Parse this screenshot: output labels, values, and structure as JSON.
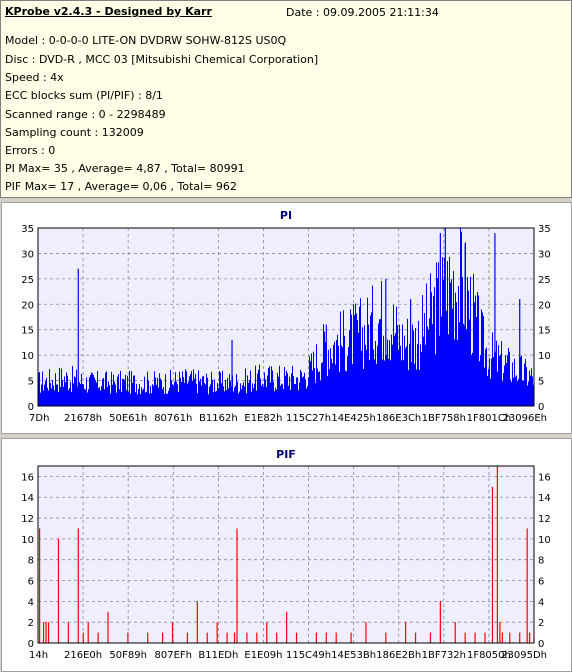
{
  "header": {
    "title": "KProbe v2.4.3 - Designed by Karr",
    "date": "Date : 09.09.2005 21:11:34",
    "lines": [
      "Model : 0-0-0-0 LITE-ON DVDRW SOHW-812S  US0Q",
      "Disc : DVD-R , MCC 03 [Mitsubishi Chemical Corporation]",
      "Speed : 4x",
      "ECC blocks sum (PI/PIF) : 8/1",
      "Scanned range : 0 - 2298489",
      "Sampling count : 132009",
      "Errors : 0",
      "PI Max= 35 , Average= 4,87 , Total= 80991",
      "PIF Max= 17 , Average= 0,06 , Total= 962"
    ]
  },
  "chart_data": [
    {
      "type": "bar",
      "title": "PI",
      "color": "#0000ff",
      "ylim": [
        0,
        35
      ],
      "yticks": [
        0,
        5,
        10,
        15,
        20,
        25,
        30,
        35
      ],
      "xticks": [
        "7Dh",
        "21678h",
        "50E61h",
        "80761h",
        "B1162h",
        "E1E82h",
        "115C27h",
        "14E425h",
        "186E3Ch",
        "1BF758h",
        "1F801Ch",
        "23096Eh"
      ],
      "grid": true,
      "profile": [
        [
          0,
          5
        ],
        [
          0.05,
          6
        ],
        [
          0.1,
          5
        ],
        [
          0.15,
          5
        ],
        [
          0.2,
          5
        ],
        [
          0.25,
          5
        ],
        [
          0.3,
          5.5
        ],
        [
          0.35,
          5
        ],
        [
          0.4,
          5
        ],
        [
          0.45,
          6
        ],
        [
          0.5,
          6
        ],
        [
          0.53,
          6
        ],
        [
          0.55,
          8
        ],
        [
          0.58,
          13
        ],
        [
          0.62,
          14
        ],
        [
          0.66,
          16
        ],
        [
          0.69,
          19
        ],
        [
          0.71,
          18
        ],
        [
          0.73,
          14
        ],
        [
          0.76,
          14
        ],
        [
          0.78,
          17
        ],
        [
          0.8,
          21
        ],
        [
          0.82,
          24
        ],
        [
          0.84,
          27
        ],
        [
          0.86,
          25
        ],
        [
          0.88,
          18
        ],
        [
          0.9,
          12
        ],
        [
          0.92,
          10
        ],
        [
          0.94,
          9
        ],
        [
          0.96,
          8
        ],
        [
          0.98,
          7
        ],
        [
          1,
          6
        ]
      ],
      "spikes": [
        [
          0.08,
          27
        ],
        [
          0.39,
          13
        ],
        [
          0.82,
          35
        ],
        [
          0.81,
          34
        ],
        [
          0.92,
          34
        ],
        [
          0.97,
          21
        ],
        [
          0.58,
          16
        ],
        [
          0.7,
          25
        ],
        [
          0.75,
          21
        ],
        [
          0.86,
          32
        ]
      ]
    },
    {
      "type": "bar",
      "title": "PIF",
      "color": "#ff0000",
      "ylim": [
        0,
        17
      ],
      "yticks": [
        0,
        2,
        4,
        6,
        8,
        10,
        12,
        14,
        16
      ],
      "xticks": [
        "14h",
        "216E0h",
        "50F89h",
        "807EFh",
        "B11EDh",
        "E1E09h",
        "115C49h",
        "14E53Bh",
        "186E2Bh",
        "1BF732h",
        "1F8050h",
        "23095Dh"
      ],
      "grid": true,
      "spikes": [
        [
          0.002,
          11
        ],
        [
          0.01,
          2
        ],
        [
          0.015,
          2
        ],
        [
          0.02,
          2
        ],
        [
          0.04,
          10
        ],
        [
          0.06,
          2
        ],
        [
          0.08,
          11
        ],
        [
          0.09,
          1
        ],
        [
          0.1,
          2
        ],
        [
          0.12,
          1
        ],
        [
          0.14,
          3
        ],
        [
          0.18,
          1
        ],
        [
          0.22,
          1
        ],
        [
          0.25,
          1
        ],
        [
          0.27,
          2
        ],
        [
          0.3,
          1
        ],
        [
          0.32,
          4
        ],
        [
          0.34,
          1
        ],
        [
          0.36,
          2
        ],
        [
          0.38,
          1
        ],
        [
          0.395,
          1
        ],
        [
          0.4,
          11
        ],
        [
          0.42,
          1
        ],
        [
          0.44,
          1
        ],
        [
          0.46,
          2
        ],
        [
          0.48,
          1
        ],
        [
          0.5,
          3
        ],
        [
          0.52,
          1
        ],
        [
          0.56,
          1
        ],
        [
          0.58,
          1
        ],
        [
          0.6,
          1
        ],
        [
          0.63,
          1
        ],
        [
          0.66,
          2
        ],
        [
          0.7,
          1
        ],
        [
          0.74,
          2
        ],
        [
          0.76,
          1
        ],
        [
          0.79,
          1
        ],
        [
          0.81,
          4
        ],
        [
          0.84,
          2
        ],
        [
          0.86,
          1
        ],
        [
          0.88,
          1
        ],
        [
          0.9,
          1
        ],
        [
          0.915,
          15
        ],
        [
          0.925,
          17
        ],
        [
          0.93,
          2
        ],
        [
          0.935,
          1
        ],
        [
          0.95,
          1
        ],
        [
          0.97,
          1
        ],
        [
          0.985,
          11
        ],
        [
          0.99,
          1
        ]
      ]
    }
  ]
}
